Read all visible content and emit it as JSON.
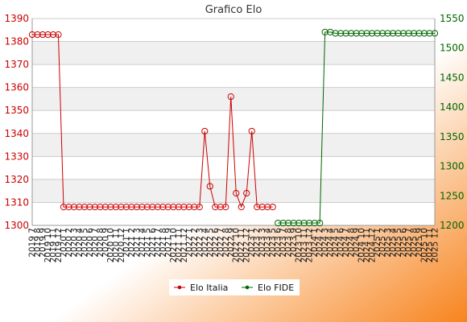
{
  "chart_data": {
    "type": "line",
    "title": "Grafico Elo",
    "grid": true,
    "legend_placement": "bottom",
    "colors": {
      "left_series": "#cc0000",
      "right_series": "#006600",
      "background_gradient_start": "#ffffff",
      "background_gradient_end": "#f7841e",
      "plot_band_light": "#ffffff",
      "plot_band_dark": "#f0f0f0"
    },
    "x": [
      "2019 7",
      "2019 8",
      "2019 9",
      "2019 10",
      "2019 11",
      "2019 12",
      "2020 1",
      "2020 2",
      "2020 3",
      "2020 4",
      "2020 5",
      "2020 6",
      "2020 7",
      "2020 8",
      "2020 9",
      "2020 10",
      "2020 11",
      "2020 12",
      "2021 1",
      "2021 2",
      "2021 3",
      "2021 4",
      "2021 5",
      "2021 6",
      "2021 7",
      "2021 8",
      "2021 9",
      "2021 10",
      "2021 11",
      "2021 12",
      "2022 1",
      "2022 2",
      "2022 3",
      "2022 4",
      "2022 5",
      "2022 6",
      "2022 7",
      "2022 8",
      "2022 9",
      "2022 10",
      "2022 11",
      "2022 12",
      "2023 1",
      "2023 2",
      "2023 3",
      "2023 4",
      "2023 5",
      "2023 6",
      "2023 7",
      "2023 8",
      "2023 9",
      "2023 10",
      "2023 11",
      "2023 12",
      "2024 1",
      "2024 2",
      "2024 3",
      "2024 4",
      "2024 5",
      "2024 6",
      "2024 7",
      "2024 8",
      "2024 9",
      "2024 10",
      "2024 11",
      "2024 12",
      "2025 1",
      "2025 2",
      "2025 3",
      "2025 4",
      "2025 5",
      "2025 6",
      "2025 7",
      "2025 8",
      "2025 9",
      "2025 10",
      "2025 11",
      "2025 12"
    ],
    "x_tick_labels": [
      "2019 7",
      "2019 8",
      "2019 9",
      "2019 10",
      "2019 11",
      "2019 12",
      "2020 1",
      "2020 2",
      "2020 3",
      "2020 4",
      "2020 5",
      "2020 6",
      "2020 7",
      "2020 8",
      "2020 9",
      "2020 10",
      "2020 11",
      "2020 12",
      "2021 1",
      "2021 2",
      "2021 3",
      "2021 4",
      "2021 5",
      "2021 6",
      "2021 7",
      "2021 8",
      "2021 9",
      "2021 10",
      "2021 11",
      "2021 12",
      "2022 1",
      "2022 2",
      "2022 3",
      "2022 4",
      "2022 5",
      "2022 6",
      "2022 7",
      "2022 8",
      "2022 9",
      "2022 10",
      "2022 11",
      "2022 12",
      "2023 1",
      "2023 2",
      "2023 3",
      "2023 4",
      "2023 5",
      "2023 6",
      "2023 7",
      "2023 8",
      "2023 9",
      "2023 10",
      "2023 11",
      "2023 12",
      "2024 1",
      "2024 2",
      "2024 3",
      "2024 4",
      "2024 5",
      "2024 6",
      "2024 7",
      "2024 8",
      "2024 9",
      "2024 10",
      "2024 11",
      "2024 12",
      "2025 1",
      "2025 2",
      "2025 3",
      "2025 4",
      "2025 5",
      "2025 6",
      "2025 7",
      "2025 8",
      "2025 9",
      "2025 10",
      "2025 11",
      "2025 12"
    ],
    "y_left": {
      "ylim": [
        1300,
        1390
      ],
      "ticks": [
        1300,
        1310,
        1320,
        1330,
        1340,
        1350,
        1360,
        1370,
        1380,
        1390
      ]
    },
    "y_right": {
      "ylim": [
        1200,
        1550
      ],
      "ticks": [
        1200,
        1250,
        1300,
        1350,
        1400,
        1450,
        1500,
        1550
      ]
    },
    "series": [
      {
        "name": "Elo Italia",
        "axis": "left",
        "marker": "circle",
        "values": [
          1383,
          1383,
          1383,
          1383,
          1383,
          1383,
          1308,
          1308,
          1308,
          1308,
          1308,
          1308,
          1308,
          1308,
          1308,
          1308,
          1308,
          1308,
          1308,
          1308,
          1308,
          1308,
          1308,
          1308,
          1308,
          1308,
          1308,
          1308,
          1308,
          1308,
          1308,
          1308,
          1308,
          1341,
          1317,
          1308,
          1308,
          1308,
          1356,
          1314,
          1308,
          1314,
          1341,
          1308,
          1308,
          1308,
          1308,
          null,
          null,
          null,
          null,
          null,
          null,
          null,
          null,
          null,
          null,
          null,
          null,
          null,
          null,
          null,
          null,
          null,
          null,
          null,
          null,
          null,
          null,
          null,
          null,
          null,
          null,
          null,
          null,
          null,
          null,
          null
        ]
      },
      {
        "name": "Elo FIDE",
        "axis": "right",
        "marker": "circle",
        "values": [
          null,
          null,
          null,
          null,
          null,
          null,
          null,
          null,
          null,
          null,
          null,
          null,
          null,
          null,
          null,
          null,
          null,
          null,
          null,
          null,
          null,
          null,
          null,
          null,
          null,
          null,
          null,
          null,
          null,
          null,
          null,
          null,
          null,
          null,
          null,
          null,
          null,
          null,
          null,
          null,
          null,
          null,
          null,
          null,
          null,
          null,
          null,
          1204,
          1204,
          1204,
          1204,
          1204,
          1204,
          1204,
          1204,
          1204,
          1527,
          1527,
          1525,
          1525,
          1525,
          1525,
          1525,
          1525,
          1525,
          1525,
          1525,
          1525,
          1525,
          1525,
          1525,
          1525,
          1525,
          1525,
          1525,
          1525,
          1525,
          1525
        ]
      }
    ]
  }
}
